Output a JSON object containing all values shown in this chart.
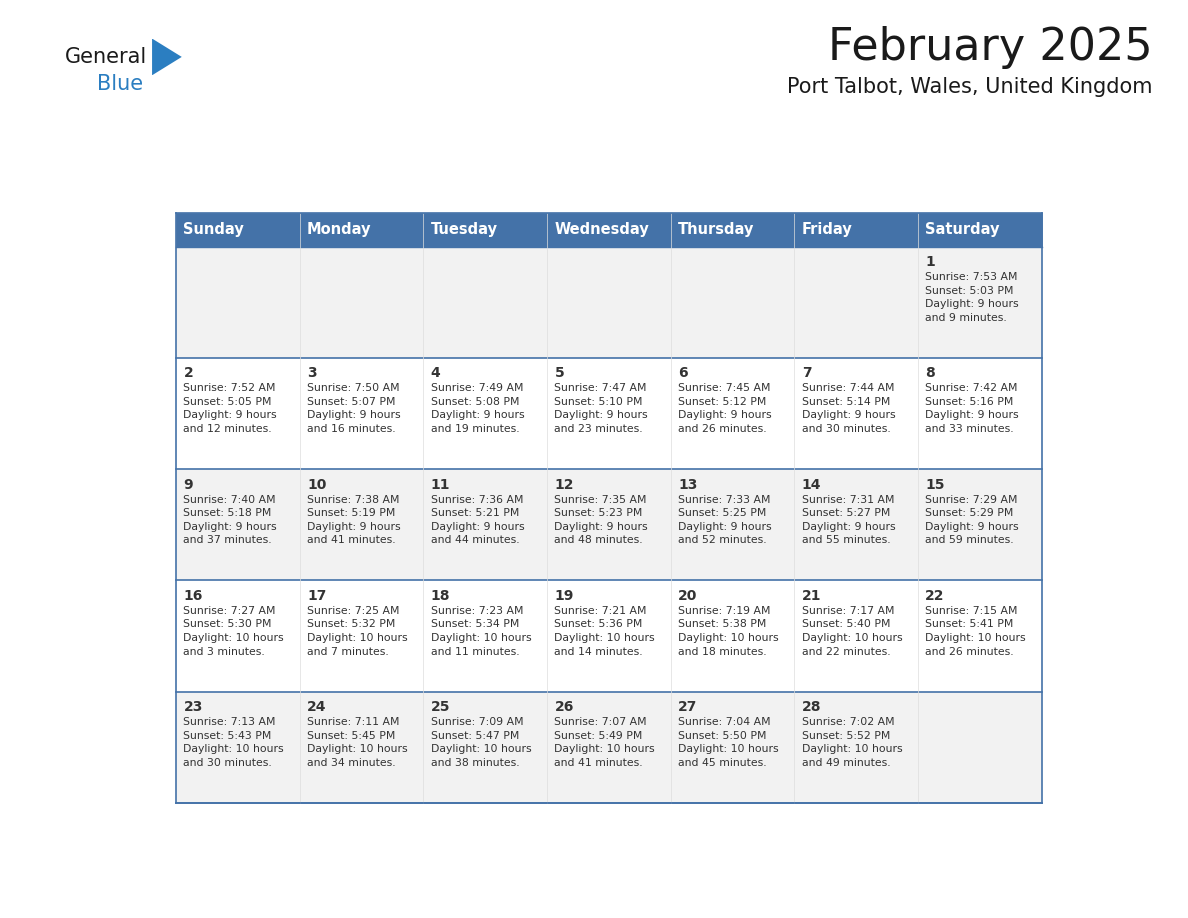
{
  "title": "February 2025",
  "subtitle": "Port Talbot, Wales, United Kingdom",
  "days_of_week": [
    "Sunday",
    "Monday",
    "Tuesday",
    "Wednesday",
    "Thursday",
    "Friday",
    "Saturday"
  ],
  "header_bg": "#4472a8",
  "header_text": "#ffffff",
  "row_bg_even": "#f2f2f2",
  "row_bg_odd": "#ffffff",
  "cell_border": "#4472a8",
  "day_number_color": "#333333",
  "info_text_color": "#333333",
  "title_color": "#1a1a1a",
  "subtitle_color": "#1a1a1a",
  "logo_general_color": "#1a1a1a",
  "logo_blue_color": "#2b7ec1",
  "calendar_data": [
    [
      {
        "day": null,
        "sunrise": null,
        "sunset": null,
        "daylight": null
      },
      {
        "day": null,
        "sunrise": null,
        "sunset": null,
        "daylight": null
      },
      {
        "day": null,
        "sunrise": null,
        "sunset": null,
        "daylight": null
      },
      {
        "day": null,
        "sunrise": null,
        "sunset": null,
        "daylight": null
      },
      {
        "day": null,
        "sunrise": null,
        "sunset": null,
        "daylight": null
      },
      {
        "day": null,
        "sunrise": null,
        "sunset": null,
        "daylight": null
      },
      {
        "day": 1,
        "sunrise": "7:53 AM",
        "sunset": "5:03 PM",
        "daylight": "9 hours\nand 9 minutes."
      }
    ],
    [
      {
        "day": 2,
        "sunrise": "7:52 AM",
        "sunset": "5:05 PM",
        "daylight": "9 hours\nand 12 minutes."
      },
      {
        "day": 3,
        "sunrise": "7:50 AM",
        "sunset": "5:07 PM",
        "daylight": "9 hours\nand 16 minutes."
      },
      {
        "day": 4,
        "sunrise": "7:49 AM",
        "sunset": "5:08 PM",
        "daylight": "9 hours\nand 19 minutes."
      },
      {
        "day": 5,
        "sunrise": "7:47 AM",
        "sunset": "5:10 PM",
        "daylight": "9 hours\nand 23 minutes."
      },
      {
        "day": 6,
        "sunrise": "7:45 AM",
        "sunset": "5:12 PM",
        "daylight": "9 hours\nand 26 minutes."
      },
      {
        "day": 7,
        "sunrise": "7:44 AM",
        "sunset": "5:14 PM",
        "daylight": "9 hours\nand 30 minutes."
      },
      {
        "day": 8,
        "sunrise": "7:42 AM",
        "sunset": "5:16 PM",
        "daylight": "9 hours\nand 33 minutes."
      }
    ],
    [
      {
        "day": 9,
        "sunrise": "7:40 AM",
        "sunset": "5:18 PM",
        "daylight": "9 hours\nand 37 minutes."
      },
      {
        "day": 10,
        "sunrise": "7:38 AM",
        "sunset": "5:19 PM",
        "daylight": "9 hours\nand 41 minutes."
      },
      {
        "day": 11,
        "sunrise": "7:36 AM",
        "sunset": "5:21 PM",
        "daylight": "9 hours\nand 44 minutes."
      },
      {
        "day": 12,
        "sunrise": "7:35 AM",
        "sunset": "5:23 PM",
        "daylight": "9 hours\nand 48 minutes."
      },
      {
        "day": 13,
        "sunrise": "7:33 AM",
        "sunset": "5:25 PM",
        "daylight": "9 hours\nand 52 minutes."
      },
      {
        "day": 14,
        "sunrise": "7:31 AM",
        "sunset": "5:27 PM",
        "daylight": "9 hours\nand 55 minutes."
      },
      {
        "day": 15,
        "sunrise": "7:29 AM",
        "sunset": "5:29 PM",
        "daylight": "9 hours\nand 59 minutes."
      }
    ],
    [
      {
        "day": 16,
        "sunrise": "7:27 AM",
        "sunset": "5:30 PM",
        "daylight": "10 hours\nand 3 minutes."
      },
      {
        "day": 17,
        "sunrise": "7:25 AM",
        "sunset": "5:32 PM",
        "daylight": "10 hours\nand 7 minutes."
      },
      {
        "day": 18,
        "sunrise": "7:23 AM",
        "sunset": "5:34 PM",
        "daylight": "10 hours\nand 11 minutes."
      },
      {
        "day": 19,
        "sunrise": "7:21 AM",
        "sunset": "5:36 PM",
        "daylight": "10 hours\nand 14 minutes."
      },
      {
        "day": 20,
        "sunrise": "7:19 AM",
        "sunset": "5:38 PM",
        "daylight": "10 hours\nand 18 minutes."
      },
      {
        "day": 21,
        "sunrise": "7:17 AM",
        "sunset": "5:40 PM",
        "daylight": "10 hours\nand 22 minutes."
      },
      {
        "day": 22,
        "sunrise": "7:15 AM",
        "sunset": "5:41 PM",
        "daylight": "10 hours\nand 26 minutes."
      }
    ],
    [
      {
        "day": 23,
        "sunrise": "7:13 AM",
        "sunset": "5:43 PM",
        "daylight": "10 hours\nand 30 minutes."
      },
      {
        "day": 24,
        "sunrise": "7:11 AM",
        "sunset": "5:45 PM",
        "daylight": "10 hours\nand 34 minutes."
      },
      {
        "day": 25,
        "sunrise": "7:09 AM",
        "sunset": "5:47 PM",
        "daylight": "10 hours\nand 38 minutes."
      },
      {
        "day": 26,
        "sunrise": "7:07 AM",
        "sunset": "5:49 PM",
        "daylight": "10 hours\nand 41 minutes."
      },
      {
        "day": 27,
        "sunrise": "7:04 AM",
        "sunset": "5:50 PM",
        "daylight": "10 hours\nand 45 minutes."
      },
      {
        "day": 28,
        "sunrise": "7:02 AM",
        "sunset": "5:52 PM",
        "daylight": "10 hours\nand 49 minutes."
      },
      {
        "day": null,
        "sunrise": null,
        "sunset": null,
        "daylight": null
      }
    ]
  ]
}
